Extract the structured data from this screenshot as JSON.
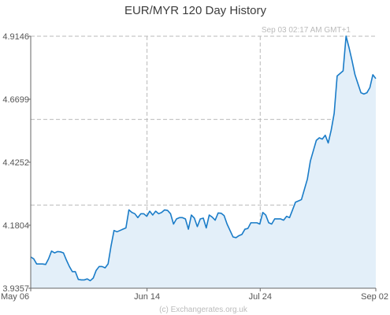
{
  "chart_data": {
    "type": "area",
    "title": "EUR/MYR  120 Day History",
    "timestamp": "Sep 03  02:17 AM GMT+1",
    "credit": "(c) Exchangerates.org.uk",
    "x_tick_labels": [
      "May 06",
      "Jun 14",
      "Jul 24",
      "Sep 02"
    ],
    "y_tick_labels": [
      "4.9146",
      "4.6699",
      "4.4252",
      "4.1804",
      "3.9357"
    ],
    "ylim": [
      3.9357,
      4.9146
    ],
    "colors": {
      "line": "#1a7cc8",
      "fill": "#e3eff9",
      "grid": "#b9b9b9",
      "axis": "#666666"
    },
    "series": [
      {
        "values": [
          4.057,
          4.05,
          4.03,
          4.03,
          4.03,
          4.028,
          4.05,
          4.08,
          4.073,
          4.078,
          4.077,
          4.073,
          4.045,
          4.02,
          4.0,
          4.0,
          3.97,
          3.968,
          3.968,
          3.972,
          3.965,
          3.975,
          4.005,
          4.02,
          4.02,
          4.015,
          4.03,
          4.1,
          4.16,
          4.155,
          4.16,
          4.165,
          4.17,
          4.24,
          4.23,
          4.225,
          4.21,
          4.225,
          4.225,
          4.215,
          4.235,
          4.22,
          4.235,
          4.225,
          4.23,
          4.24,
          4.238,
          4.225,
          4.185,
          4.205,
          4.21,
          4.21,
          4.205,
          4.165,
          4.22,
          4.208,
          4.175,
          4.205,
          4.208,
          4.17,
          4.22,
          4.212,
          4.2,
          4.228,
          4.227,
          4.218,
          4.185,
          4.16,
          4.135,
          4.132,
          4.14,
          4.145,
          4.165,
          4.168,
          4.19,
          4.19,
          4.19,
          4.185,
          4.23,
          4.22,
          4.19,
          4.185,
          4.205,
          4.205,
          4.205,
          4.2,
          4.215,
          4.21,
          4.24,
          4.27,
          4.275,
          4.28,
          4.32,
          4.36,
          4.43,
          4.47,
          4.51,
          4.52,
          4.515,
          4.53,
          4.5,
          4.55,
          4.615,
          4.76,
          4.77,
          4.78,
          4.915,
          4.87,
          4.82,
          4.765,
          4.73,
          4.695,
          4.69,
          4.695,
          4.715,
          4.765,
          4.75
        ]
      }
    ]
  }
}
